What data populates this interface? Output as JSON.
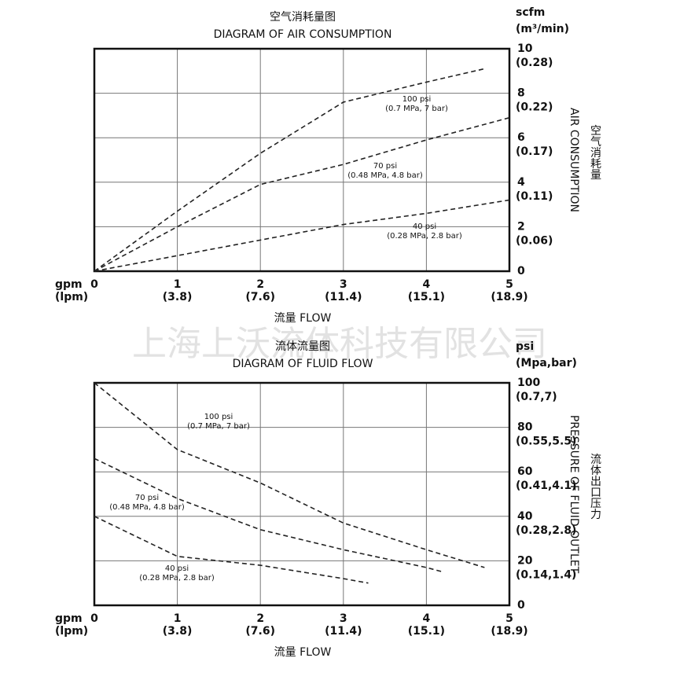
{
  "watermark": "上海上沃流体科技有限公司",
  "chart_data": [
    {
      "type": "line",
      "title": "空气消耗量图",
      "subtitle": "DIAGRAM OF AIR CONSUMPTION",
      "xlabel": "流量   FLOW",
      "x_unit": "gpm",
      "x_unit2": "(lpm)",
      "y_unit": "scfm",
      "y_unit2": "(m³/min)",
      "ylabel": "AIR CONSUMPTION",
      "ylabel_cn": "空气消耗量",
      "xlim": [
        0,
        5
      ],
      "xticks": [
        0,
        1,
        2,
        3,
        4,
        5
      ],
      "xtick_sublabels": [
        null,
        "(3.8)",
        "(7.6)",
        "(11.4)",
        "(15.1)",
        "(18.9)"
      ],
      "ylim": [
        0,
        10
      ],
      "yticks": [
        0,
        2,
        4,
        6,
        8,
        10
      ],
      "ytick_sublabels": [
        null,
        "(0.06)",
        "(0.11)",
        "(0.17)",
        "(0.22)",
        "(0.28)"
      ],
      "grid": true,
      "series": [
        {
          "name": "100 psi",
          "note": "(0.7 MPa, 7 bar)",
          "color": "#222222",
          "x": [
            0,
            1,
            2,
            3,
            4,
            4.7
          ],
          "values": [
            0,
            2.7,
            5.3,
            7.6,
            8.5,
            9.1
          ]
        },
        {
          "name": "70 psi",
          "note": "(0.48 MPa, 4.8 bar)",
          "color": "#222222",
          "x": [
            0,
            1,
            2,
            3,
            4,
            5
          ],
          "values": [
            0,
            2.0,
            3.9,
            4.8,
            5.9,
            6.9
          ]
        },
        {
          "name": "40 psi",
          "note": "(0.28 MPa, 2.8 bar)",
          "color": "#222222",
          "x": [
            0,
            1,
            2,
            3,
            4,
            5
          ],
          "values": [
            0,
            0.7,
            1.4,
            2.1,
            2.6,
            3.2
          ]
        }
      ]
    },
    {
      "type": "line",
      "title": "流体流量图",
      "subtitle": "DIAGRAM OF FLUID FLOW",
      "xlabel": "流量   FLOW",
      "x_unit": "gpm",
      "x_unit2": "(lpm)",
      "y_unit": "psi",
      "y_unit2": "(Mpa,bar)",
      "ylabel": "PRESSURE OF FLUID OUTLET",
      "ylabel_cn": "流体出口压力",
      "xlim": [
        0,
        5
      ],
      "xticks": [
        0,
        1,
        2,
        3,
        4,
        5
      ],
      "xtick_sublabels": [
        null,
        "(3.8)",
        "(7.6)",
        "(11.4)",
        "(15.1)",
        "(18.9)"
      ],
      "ylim": [
        0,
        100
      ],
      "yticks": [
        0,
        20,
        40,
        60,
        80,
        100
      ],
      "ytick_sublabels": [
        null,
        "(0.14,1.4)",
        "(0.28,2.8)",
        "(0.41,4.1)",
        "(0.55,5.5)",
        "(0.7,7)"
      ],
      "grid": true,
      "series": [
        {
          "name": "100 psi",
          "note": "(0.7 MPa, 7 bar)",
          "color": "#222222",
          "x": [
            0,
            1,
            2,
            3,
            4,
            4.7
          ],
          "values": [
            100,
            70,
            55,
            37,
            25,
            17
          ]
        },
        {
          "name": "70 psi",
          "note": "(0.48 MPa, 4.8 bar)",
          "color": "#222222",
          "x": [
            0,
            1,
            2,
            3,
            4,
            4.2
          ],
          "values": [
            66,
            48,
            34,
            25,
            17,
            15
          ]
        },
        {
          "name": "40 psi",
          "note": "(0.28 MPa, 2.8 bar)",
          "color": "#222222",
          "x": [
            0,
            1,
            2,
            3,
            3.3
          ],
          "values": [
            40,
            22,
            18,
            12,
            10
          ]
        }
      ]
    }
  ]
}
